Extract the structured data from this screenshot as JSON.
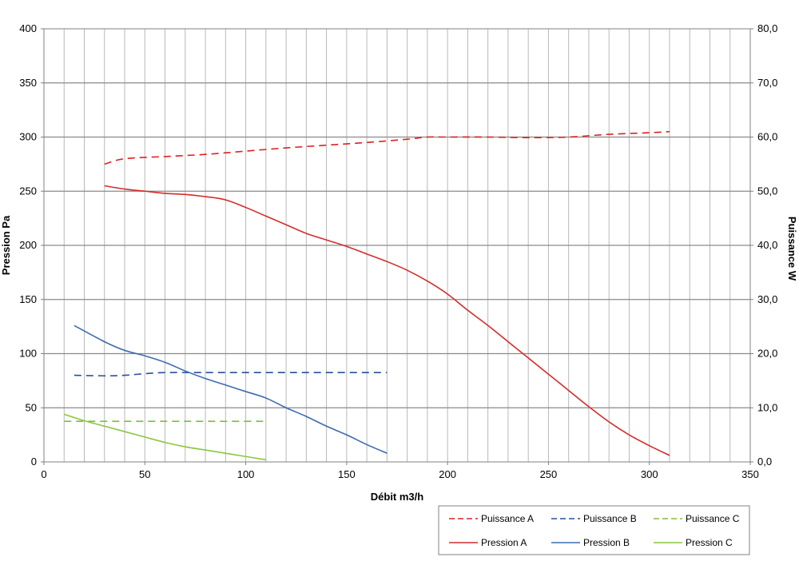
{
  "chart_data": {
    "type": "line",
    "xlabel": "Débit m3/h",
    "ylabel_left": "Pression Pa",
    "ylabel_right": "Puissance W",
    "xlim": [
      0,
      350
    ],
    "ylim_left": [
      0,
      400
    ],
    "ylim_right": [
      0,
      80
    ],
    "x_ticks": [
      "0",
      "50",
      "100",
      "150",
      "200",
      "250",
      "300",
      "350"
    ],
    "y_left_ticks": [
      "0",
      "50",
      "100",
      "150",
      "200",
      "250",
      "300",
      "350",
      "400"
    ],
    "y_right_ticks": [
      "0,0",
      "10,0",
      "20,0",
      "30,0",
      "40,0",
      "50,0",
      "60,0",
      "70,0",
      "80,0"
    ],
    "grid": true,
    "legend_position": "bottom-right",
    "series": [
      {
        "name": "Puissance A",
        "axis": "right",
        "style": "dashed",
        "color": "#E02020",
        "points": [
          [
            30,
            55
          ],
          [
            40,
            56
          ],
          [
            60,
            56.4
          ],
          [
            80,
            56.8
          ],
          [
            100,
            57.4
          ],
          [
            120,
            58
          ],
          [
            140,
            58.5
          ],
          [
            160,
            59
          ],
          [
            180,
            59.6
          ],
          [
            190,
            60
          ],
          [
            200,
            60
          ],
          [
            220,
            60
          ],
          [
            240,
            59.9
          ],
          [
            260,
            60
          ],
          [
            280,
            60.5
          ],
          [
            300,
            60.8
          ],
          [
            310,
            61
          ]
        ]
      },
      {
        "name": "Puissance B",
        "axis": "right",
        "style": "dashed",
        "color": "#2A4E9E",
        "points": [
          [
            15,
            16
          ],
          [
            30,
            15.9
          ],
          [
            40,
            16
          ],
          [
            50,
            16.3
          ],
          [
            60,
            16.5
          ],
          [
            80,
            16.5
          ],
          [
            100,
            16.5
          ],
          [
            120,
            16.5
          ],
          [
            140,
            16.5
          ],
          [
            170,
            16.5
          ]
        ]
      },
      {
        "name": "Puissance C",
        "axis": "right",
        "style": "dashed",
        "color": "#7DBF3A",
        "points": [
          [
            10,
            7.5
          ],
          [
            30,
            7.5
          ],
          [
            50,
            7.5
          ],
          [
            70,
            7.5
          ],
          [
            90,
            7.5
          ],
          [
            110,
            7.5
          ]
        ]
      },
      {
        "name": "Pression A",
        "axis": "left",
        "style": "solid",
        "color": "#D42B2B",
        "points": [
          [
            30,
            255
          ],
          [
            40,
            252
          ],
          [
            50,
            250
          ],
          [
            60,
            248
          ],
          [
            70,
            247
          ],
          [
            80,
            245
          ],
          [
            90,
            242
          ],
          [
            100,
            235
          ],
          [
            110,
            227
          ],
          [
            120,
            219
          ],
          [
            130,
            211
          ],
          [
            140,
            205
          ],
          [
            150,
            199
          ],
          [
            160,
            192
          ],
          [
            170,
            185
          ],
          [
            180,
            177
          ],
          [
            190,
            167
          ],
          [
            200,
            155
          ],
          [
            210,
            140
          ],
          [
            220,
            126
          ],
          [
            230,
            111
          ],
          [
            240,
            96
          ],
          [
            250,
            81
          ],
          [
            260,
            66
          ],
          [
            270,
            51
          ],
          [
            280,
            37
          ],
          [
            290,
            25
          ],
          [
            300,
            15
          ],
          [
            310,
            6
          ]
        ]
      },
      {
        "name": "Pression B",
        "axis": "left",
        "style": "solid",
        "color": "#3C6BAE",
        "points": [
          [
            15,
            126
          ],
          [
            30,
            111
          ],
          [
            40,
            103
          ],
          [
            50,
            98
          ],
          [
            60,
            92
          ],
          [
            70,
            84
          ],
          [
            80,
            77
          ],
          [
            90,
            71
          ],
          [
            100,
            65
          ],
          [
            110,
            59
          ],
          [
            120,
            50
          ],
          [
            130,
            42
          ],
          [
            140,
            33
          ],
          [
            150,
            25
          ],
          [
            160,
            16
          ],
          [
            170,
            8
          ]
        ]
      },
      {
        "name": "Pression C",
        "axis": "left",
        "style": "solid",
        "color": "#8CC63F",
        "points": [
          [
            10,
            44
          ],
          [
            20,
            38
          ],
          [
            30,
            33
          ],
          [
            40,
            28
          ],
          [
            50,
            23
          ],
          [
            60,
            18
          ],
          [
            70,
            14
          ],
          [
            80,
            11
          ],
          [
            90,
            8
          ],
          [
            100,
            5
          ],
          [
            110,
            2
          ]
        ]
      }
    ]
  }
}
